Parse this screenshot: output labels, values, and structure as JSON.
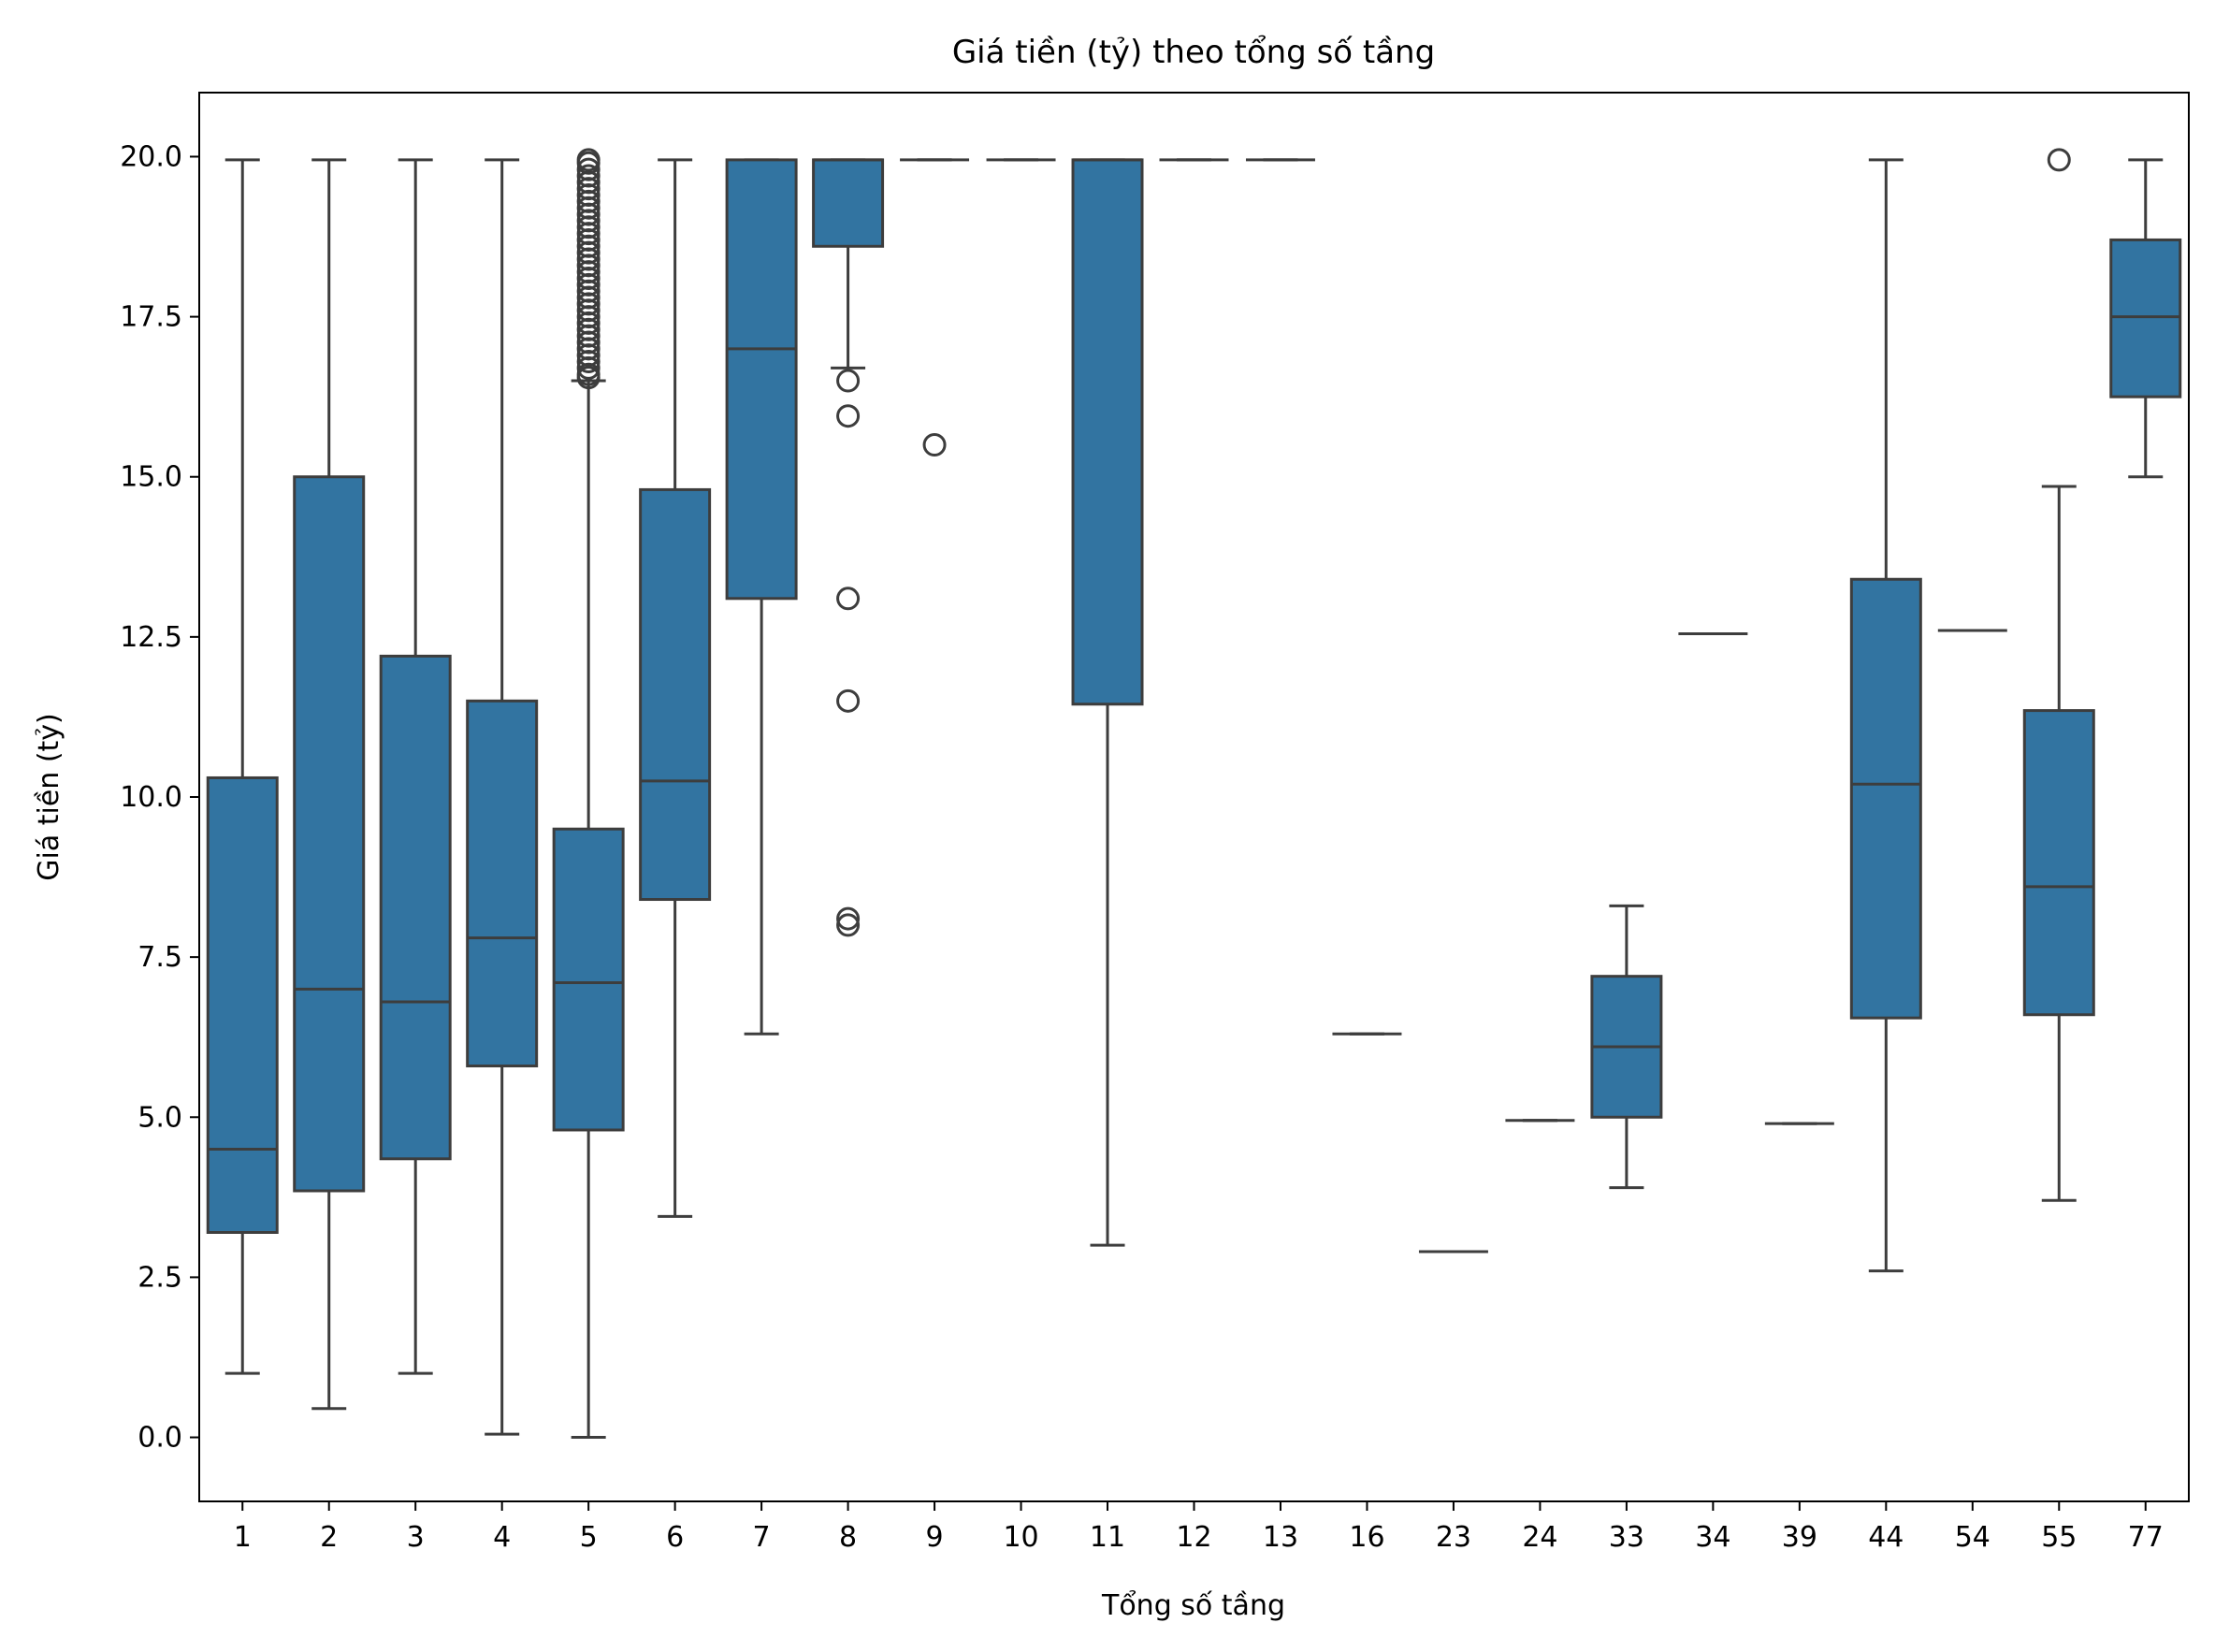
{
  "chart_data": {
    "type": "box",
    "title": "Giá tiền (tỷ) theo tổng số tầng",
    "xlabel": "Tổng số tầng",
    "ylabel": "Giá tiền (tỷ)",
    "ylim": [
      -1.0,
      21.0
    ],
    "yticks": [
      "0.0",
      "2.5",
      "5.0",
      "7.5",
      "10.0",
      "12.5",
      "15.0",
      "17.5",
      "20.0"
    ],
    "grid": false,
    "colors": {
      "box_fill": "#3274a1",
      "line": "#3d3d3d"
    },
    "categories": [
      "1",
      "2",
      "3",
      "4",
      "5",
      "6",
      "7",
      "8",
      "9",
      "10",
      "11",
      "12",
      "13",
      "16",
      "23",
      "24",
      "33",
      "34",
      "39",
      "44",
      "54",
      "55",
      "77"
    ],
    "boxes": [
      {
        "x": "1",
        "whislo": 1.0,
        "q1": 3.2,
        "med": 4.5,
        "q3": 10.3,
        "whishi": 19.95,
        "fliers": []
      },
      {
        "x": "2",
        "whislo": 0.45,
        "q1": 3.85,
        "med": 7.0,
        "q3": 15.0,
        "whishi": 19.95,
        "fliers": []
      },
      {
        "x": "3",
        "whislo": 1.0,
        "q1": 4.35,
        "med": 6.8,
        "q3": 12.2,
        "whishi": 19.95,
        "fliers": []
      },
      {
        "x": "4",
        "whislo": 0.05,
        "q1": 5.8,
        "med": 7.8,
        "q3": 11.5,
        "whishi": 19.95,
        "fliers": []
      },
      {
        "x": "5",
        "whislo": 0.0,
        "q1": 4.8,
        "med": 7.1,
        "q3": 9.5,
        "whishi": 16.5,
        "fliers": [
          16.55,
          16.6,
          16.7,
          16.8,
          16.9,
          17.0,
          17.1,
          17.2,
          17.3,
          17.4,
          17.5,
          17.6,
          17.7,
          17.8,
          17.9,
          18.0,
          18.1,
          18.2,
          18.3,
          18.4,
          18.5,
          18.6,
          18.7,
          18.8,
          18.9,
          19.0,
          19.1,
          19.2,
          19.3,
          19.4,
          19.5,
          19.6,
          19.7,
          19.8,
          19.9,
          19.95
        ]
      },
      {
        "x": "6",
        "whislo": 3.45,
        "q1": 8.4,
        "med": 10.25,
        "q3": 14.8,
        "whishi": 19.95,
        "fliers": []
      },
      {
        "x": "7",
        "whislo": 6.3,
        "q1": 13.1,
        "med": 17.0,
        "q3": 19.95,
        "whishi": 19.95,
        "fliers": []
      },
      {
        "x": "8",
        "whislo": 16.7,
        "q1": 18.6,
        "med": 19.95,
        "q3": 19.95,
        "whishi": 19.95,
        "fliers": [
          16.5,
          15.95,
          13.1,
          11.5,
          8.1,
          8.0
        ]
      },
      {
        "x": "9",
        "whislo": 19.95,
        "q1": 19.95,
        "med": 19.95,
        "q3": 19.95,
        "whishi": 19.95,
        "fliers": [
          15.5
        ]
      },
      {
        "x": "10",
        "whislo": 19.95,
        "q1": 19.95,
        "med": 19.95,
        "q3": 19.95,
        "whishi": 19.95,
        "fliers": []
      },
      {
        "x": "11",
        "whislo": 3.0,
        "q1": 11.45,
        "med": 19.95,
        "q3": 19.95,
        "whishi": 19.95,
        "fliers": []
      },
      {
        "x": "12",
        "whislo": 19.95,
        "q1": 19.95,
        "med": 19.95,
        "q3": 19.95,
        "whishi": 19.95,
        "fliers": []
      },
      {
        "x": "13",
        "whislo": 19.95,
        "q1": 19.95,
        "med": 19.95,
        "q3": 19.95,
        "whishi": 19.95,
        "fliers": []
      },
      {
        "x": "16",
        "whislo": 6.3,
        "q1": 6.3,
        "med": 6.3,
        "q3": 6.3,
        "whishi": 6.3,
        "fliers": []
      },
      {
        "x": "23",
        "whislo": 2.9,
        "q1": 2.9,
        "med": 2.9,
        "q3": 2.9,
        "whishi": 2.9,
        "fliers": []
      },
      {
        "x": "24",
        "whislo": 4.95,
        "q1": 4.95,
        "med": 4.95,
        "q3": 4.95,
        "whishi": 4.95,
        "fliers": []
      },
      {
        "x": "33",
        "whislo": 3.9,
        "q1": 5.0,
        "med": 6.1,
        "q3": 7.2,
        "whishi": 8.3,
        "fliers": []
      },
      {
        "x": "34",
        "whislo": 12.55,
        "q1": 12.55,
        "med": 12.55,
        "q3": 12.55,
        "whishi": 12.55,
        "fliers": []
      },
      {
        "x": "39",
        "whislo": 4.9,
        "q1": 4.9,
        "med": 4.9,
        "q3": 4.9,
        "whishi": 4.9,
        "fliers": []
      },
      {
        "x": "44",
        "whislo": 2.6,
        "q1": 6.55,
        "med": 10.2,
        "q3": 13.4,
        "whishi": 19.95,
        "fliers": []
      },
      {
        "x": "54",
        "whislo": 12.6,
        "q1": 12.6,
        "med": 12.6,
        "q3": 12.6,
        "whishi": 12.6,
        "fliers": []
      },
      {
        "x": "55",
        "whislo": 3.7,
        "q1": 6.6,
        "med": 8.6,
        "q3": 11.35,
        "whishi": 14.85,
        "fliers": [
          19.95
        ]
      },
      {
        "x": "77",
        "whislo": 15.0,
        "q1": 16.25,
        "med": 17.5,
        "q3": 18.7,
        "whishi": 19.95,
        "fliers": []
      }
    ]
  }
}
